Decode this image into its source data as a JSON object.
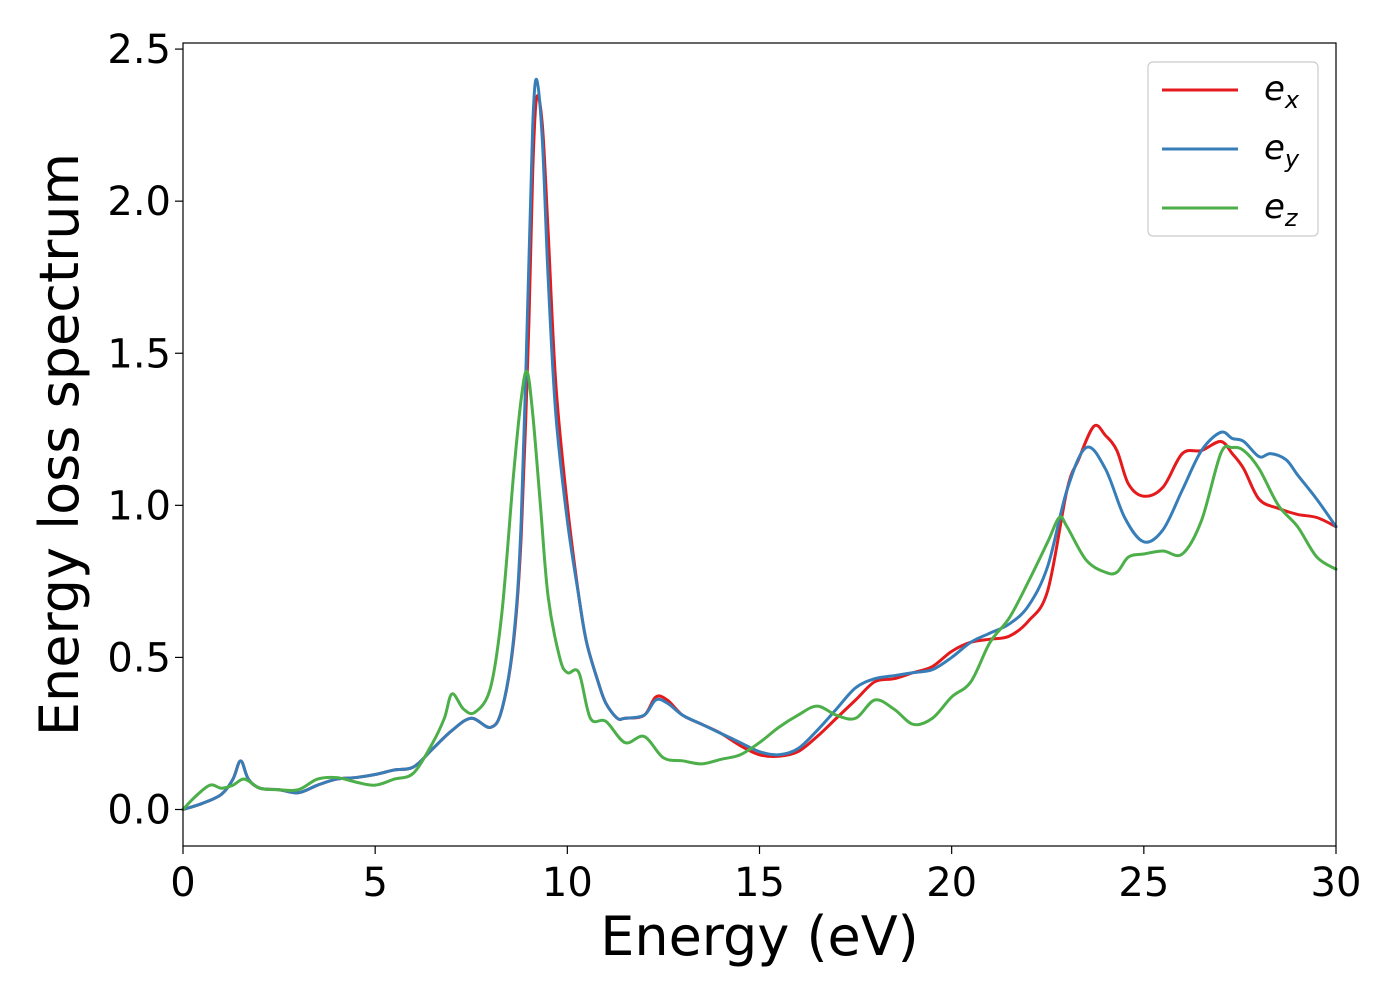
{
  "chart_data": {
    "type": "line",
    "xlabel": "Energy (eV)",
    "ylabel": "Energy loss spectrum",
    "xlim": [
      0,
      30
    ],
    "ylim": [
      -0.12,
      2.52
    ],
    "xticks": [
      0,
      5,
      10,
      15,
      20,
      25,
      30
    ],
    "xtick_labels": [
      "0",
      "5",
      "10",
      "15",
      "20",
      "25",
      "30"
    ],
    "yticks": [
      0.0,
      0.5,
      1.0,
      1.5,
      2.0,
      2.5
    ],
    "ytick_labels": [
      "0.0",
      "0.5",
      "1.0",
      "1.5",
      "2.0",
      "2.5"
    ],
    "grid": false,
    "legend_position": "upper-right",
    "series": [
      {
        "name": "e_x",
        "legend_base": "e",
        "legend_sub": "x",
        "color": "#e41a1c",
        "x": [
          0,
          0.5,
          1.0,
          1.3,
          1.5,
          1.7,
          2.0,
          2.5,
          3.0,
          3.5,
          4.0,
          4.5,
          5.0,
          5.5,
          6.0,
          6.5,
          7.0,
          7.5,
          8.0,
          8.3,
          8.6,
          8.8,
          9.0,
          9.1,
          9.2,
          9.35,
          9.5,
          9.7,
          10.0,
          10.3,
          10.5,
          10.8,
          11.0,
          11.3,
          11.5,
          12.0,
          12.3,
          12.6,
          13.0,
          13.5,
          14.0,
          14.5,
          15.0,
          15.5,
          16.0,
          16.5,
          17.0,
          17.5,
          18.0,
          18.5,
          19.0,
          19.5,
          20.0,
          20.5,
          21.0,
          21.5,
          22.0,
          22.5,
          23.0,
          23.3,
          23.7,
          24.0,
          24.3,
          24.6,
          25.0,
          25.5,
          26.0,
          26.5,
          27.0,
          27.3,
          27.6,
          28.0,
          28.5,
          29.0,
          29.5,
          30.0
        ],
        "y": [
          0.0,
          0.02,
          0.05,
          0.1,
          0.16,
          0.1,
          0.07,
          0.065,
          0.055,
          0.08,
          0.1,
          0.105,
          0.115,
          0.13,
          0.14,
          0.2,
          0.26,
          0.3,
          0.27,
          0.33,
          0.55,
          0.9,
          1.6,
          2.1,
          2.34,
          2.25,
          1.9,
          1.4,
          1.0,
          0.7,
          0.55,
          0.42,
          0.35,
          0.3,
          0.3,
          0.31,
          0.37,
          0.36,
          0.31,
          0.28,
          0.25,
          0.21,
          0.18,
          0.175,
          0.19,
          0.24,
          0.3,
          0.36,
          0.42,
          0.43,
          0.45,
          0.47,
          0.52,
          0.55,
          0.56,
          0.57,
          0.62,
          0.72,
          1.05,
          1.15,
          1.26,
          1.23,
          1.18,
          1.07,
          1.03,
          1.06,
          1.17,
          1.18,
          1.21,
          1.17,
          1.12,
          1.02,
          0.99,
          0.97,
          0.96,
          0.93
        ]
      },
      {
        "name": "e_y",
        "legend_base": "e",
        "legend_sub": "y",
        "color": "#377eb8",
        "x": [
          0,
          0.5,
          1.0,
          1.3,
          1.5,
          1.7,
          2.0,
          2.5,
          3.0,
          3.5,
          4.0,
          4.5,
          5.0,
          5.5,
          6.0,
          6.5,
          7.0,
          7.5,
          8.0,
          8.3,
          8.6,
          8.8,
          9.0,
          9.1,
          9.2,
          9.35,
          9.5,
          9.7,
          10.0,
          10.3,
          10.5,
          10.8,
          11.0,
          11.3,
          11.5,
          12.0,
          12.3,
          12.6,
          13.0,
          13.5,
          14.0,
          14.5,
          15.0,
          15.5,
          16.0,
          16.5,
          17.0,
          17.5,
          18.0,
          18.5,
          19.0,
          19.5,
          20.0,
          20.5,
          21.0,
          21.5,
          22.0,
          22.5,
          23.0,
          23.5,
          24.0,
          24.5,
          25.0,
          25.5,
          26.0,
          26.5,
          27.0,
          27.3,
          27.6,
          28.0,
          28.3,
          28.7,
          29.0,
          29.5,
          30.0
        ],
        "y": [
          0.0,
          0.02,
          0.05,
          0.1,
          0.16,
          0.1,
          0.07,
          0.065,
          0.055,
          0.08,
          0.1,
          0.105,
          0.115,
          0.13,
          0.14,
          0.2,
          0.26,
          0.3,
          0.27,
          0.33,
          0.56,
          0.95,
          1.8,
          2.25,
          2.4,
          2.2,
          1.75,
          1.3,
          0.95,
          0.7,
          0.55,
          0.42,
          0.35,
          0.3,
          0.3,
          0.31,
          0.36,
          0.35,
          0.31,
          0.28,
          0.25,
          0.22,
          0.19,
          0.18,
          0.2,
          0.26,
          0.33,
          0.4,
          0.43,
          0.44,
          0.45,
          0.46,
          0.5,
          0.55,
          0.58,
          0.61,
          0.67,
          0.8,
          1.05,
          1.19,
          1.12,
          0.96,
          0.88,
          0.92,
          1.05,
          1.18,
          1.24,
          1.22,
          1.21,
          1.16,
          1.17,
          1.15,
          1.1,
          1.02,
          0.93
        ]
      },
      {
        "name": "e_z",
        "legend_base": "e",
        "legend_sub": "z",
        "color": "#4daf4a",
        "x": [
          0,
          0.3,
          0.7,
          1.0,
          1.3,
          1.6,
          2.0,
          2.5,
          3.0,
          3.5,
          4.0,
          4.5,
          5.0,
          5.5,
          6.0,
          6.5,
          6.8,
          7.0,
          7.3,
          7.6,
          8.0,
          8.3,
          8.6,
          8.8,
          8.95,
          9.1,
          9.3,
          9.5,
          9.8,
          10.0,
          10.3,
          10.6,
          11.0,
          11.5,
          12.0,
          12.5,
          13.0,
          13.5,
          14.0,
          14.5,
          15.0,
          15.5,
          16.0,
          16.5,
          17.0,
          17.5,
          18.0,
          18.5,
          19.0,
          19.5,
          20.0,
          20.5,
          21.0,
          21.5,
          22.0,
          22.5,
          22.8,
          23.0,
          23.5,
          24.0,
          24.3,
          24.6,
          25.0,
          25.5,
          26.0,
          26.5,
          27.0,
          27.3,
          27.6,
          28.0,
          28.5,
          29.0,
          29.5,
          30.0
        ],
        "y": [
          0.0,
          0.04,
          0.08,
          0.07,
          0.08,
          0.1,
          0.07,
          0.065,
          0.065,
          0.1,
          0.105,
          0.09,
          0.08,
          0.1,
          0.12,
          0.22,
          0.3,
          0.38,
          0.33,
          0.32,
          0.4,
          0.65,
          1.1,
          1.35,
          1.44,
          1.3,
          1.0,
          0.7,
          0.5,
          0.45,
          0.45,
          0.3,
          0.29,
          0.22,
          0.24,
          0.17,
          0.16,
          0.15,
          0.165,
          0.18,
          0.22,
          0.27,
          0.31,
          0.34,
          0.31,
          0.3,
          0.36,
          0.33,
          0.28,
          0.3,
          0.37,
          0.42,
          0.55,
          0.63,
          0.75,
          0.88,
          0.96,
          0.93,
          0.82,
          0.78,
          0.78,
          0.83,
          0.84,
          0.85,
          0.84,
          0.95,
          1.17,
          1.19,
          1.18,
          1.12,
          1.0,
          0.93,
          0.83,
          0.79
        ]
      }
    ]
  }
}
